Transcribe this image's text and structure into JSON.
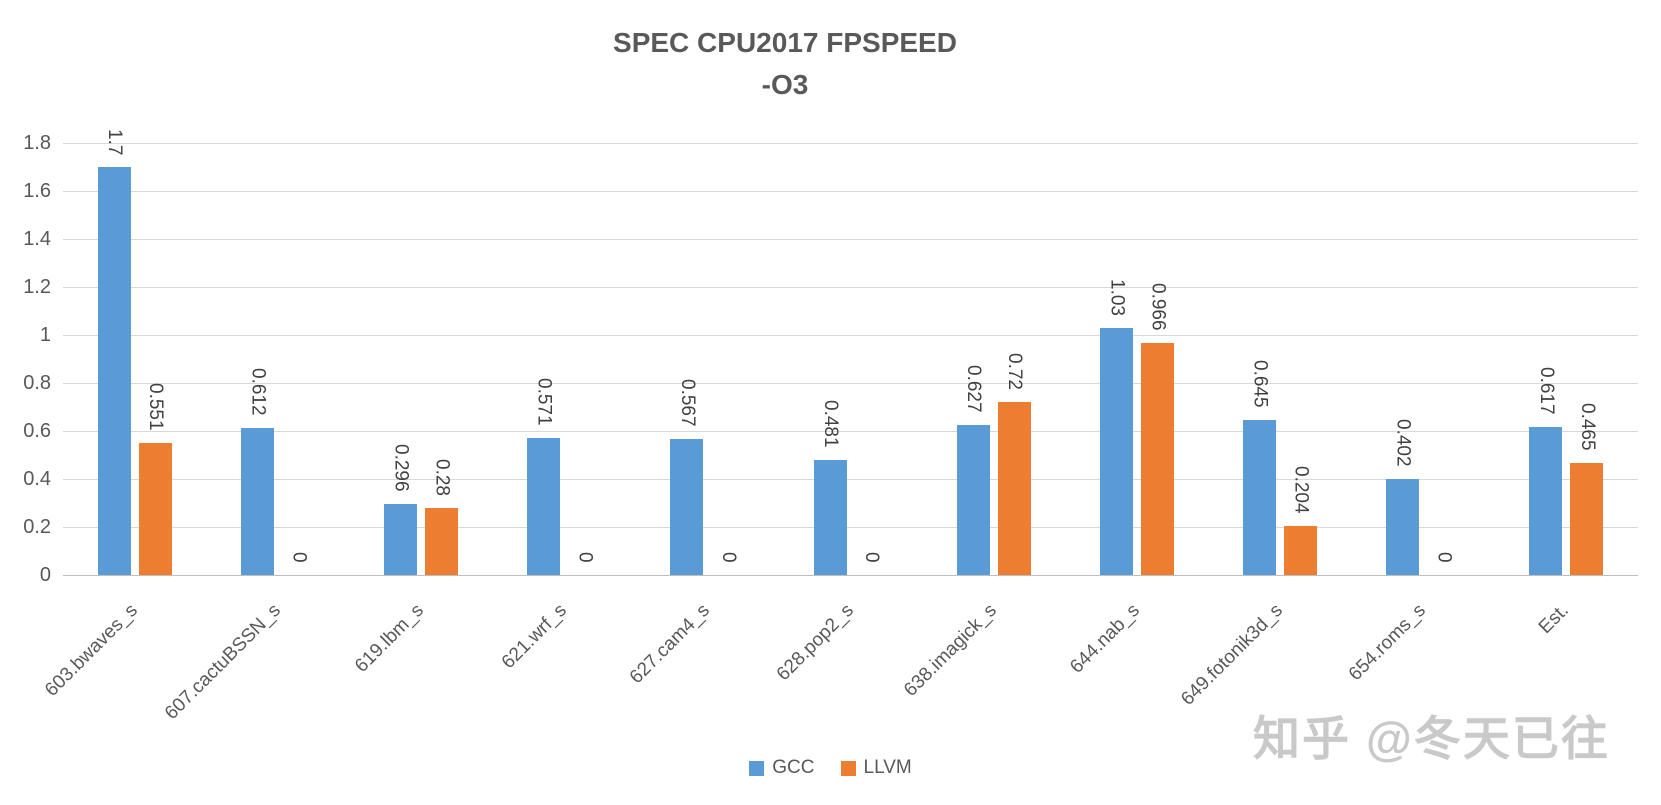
{
  "title": {
    "line1": "SPEC CPU2017 FPSPEED",
    "line2": "-O3"
  },
  "chart_data": {
    "type": "bar",
    "title": "SPEC CPU2017 FPSPEED",
    "subtitle": "-O3",
    "categories": [
      "603.bwaves_s",
      "607.cactuBSSN_s",
      "619.lbm_s",
      "621.wrf_s",
      "627.cam4_s",
      "628.pop2_s",
      "638.imagick_s",
      "644.nab_s",
      "649.fotonik3d_s",
      "654.roms_s",
      "Est."
    ],
    "series": [
      {
        "name": "GCC",
        "color": "#5B9BD5",
        "values": [
          1.7,
          0.612,
          0.296,
          0.571,
          0.567,
          0.481,
          0.627,
          1.03,
          0.645,
          0.402,
          0.617
        ]
      },
      {
        "name": "LLVM",
        "color": "#ED7D31",
        "values": [
          0.551,
          0,
          0.28,
          0,
          0,
          0,
          0.72,
          0.966,
          0.204,
          0,
          0.465
        ]
      }
    ],
    "ylim": [
      0,
      1.8
    ],
    "yticks": [
      0,
      0.2,
      0.4,
      0.6,
      0.8,
      1,
      1.2,
      1.4,
      1.6,
      1.8
    ],
    "ytick_labels": [
      "0",
      "0.2",
      "0.4",
      "0.6",
      "0.8",
      "1",
      "1.2",
      "1.4",
      "1.6",
      "1.8"
    ],
    "xlabel": "",
    "ylabel": "",
    "grid": true,
    "data_labels": true,
    "data_label_rotation": 90,
    "category_label_rotation": -45,
    "legend_position": "bottom"
  },
  "legend": [
    {
      "label": "GCC",
      "color": "#5B9BD5"
    },
    {
      "label": "LLVM",
      "color": "#ED7D31"
    }
  ],
  "watermark": "知乎 @冬天已往",
  "colors": {
    "background": "#FFFFFF",
    "grid": "#D9D9D9",
    "axis": "#BFBFBF",
    "title": "#595959",
    "tick_label": "#595959",
    "value_label": "#404040",
    "watermark": "#C9C9C9",
    "gcc": "#5B9BD5",
    "llvm": "#ED7D31"
  }
}
